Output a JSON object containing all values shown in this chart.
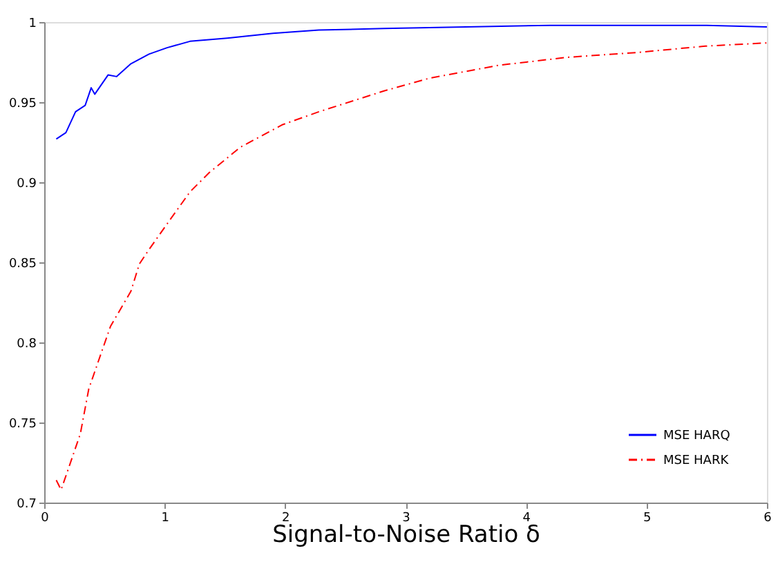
{
  "chart_data": {
    "type": "line",
    "xlabel": "Signal-to-Noise Ratio δ",
    "xlim": [
      0,
      6
    ],
    "xticks": [
      0,
      1,
      2,
      3,
      4,
      5,
      6
    ],
    "ylim": [
      0.7,
      1.0
    ],
    "yticks": [
      0.7,
      0.75,
      0.8,
      0.85,
      0.9,
      0.95,
      1
    ],
    "grid": false,
    "legend": "bottom right",
    "series": [
      {
        "name": "MSE HARQ",
        "color": "#0000ff",
        "line_style": "solid",
        "x": [
          0.1,
          0.18,
          0.26,
          0.34,
          0.39,
          0.42,
          0.53,
          0.6,
          0.72,
          0.87,
          1.02,
          1.21,
          1.52,
          1.9,
          2.28,
          2.82,
          3.5,
          4.2,
          5.0,
          5.5,
          6.0
        ],
        "values": [
          0.927,
          0.931,
          0.944,
          0.948,
          0.959,
          0.955,
          0.967,
          0.966,
          0.974,
          0.98,
          0.984,
          0.988,
          0.99,
          0.993,
          0.995,
          0.996,
          0.997,
          0.998,
          0.998,
          0.998,
          0.997
        ]
      },
      {
        "name": "MSE HARK",
        "color": "#ff0000",
        "line_style": "dashdot",
        "x": [
          0.1,
          0.14,
          0.2,
          0.3,
          0.37,
          0.55,
          0.72,
          0.79,
          0.87,
          1.02,
          1.21,
          1.37,
          1.63,
          1.98,
          2.28,
          2.82,
          3.2,
          3.77,
          4.34,
          4.92,
          5.49,
          6.0
        ],
        "values": [
          0.714,
          0.708,
          0.721,
          0.743,
          0.771,
          0.81,
          0.832,
          0.849,
          0.858,
          0.874,
          0.894,
          0.906,
          0.922,
          0.936,
          0.944,
          0.957,
          0.965,
          0.973,
          0.978,
          0.981,
          0.985,
          0.987
        ]
      }
    ]
  }
}
